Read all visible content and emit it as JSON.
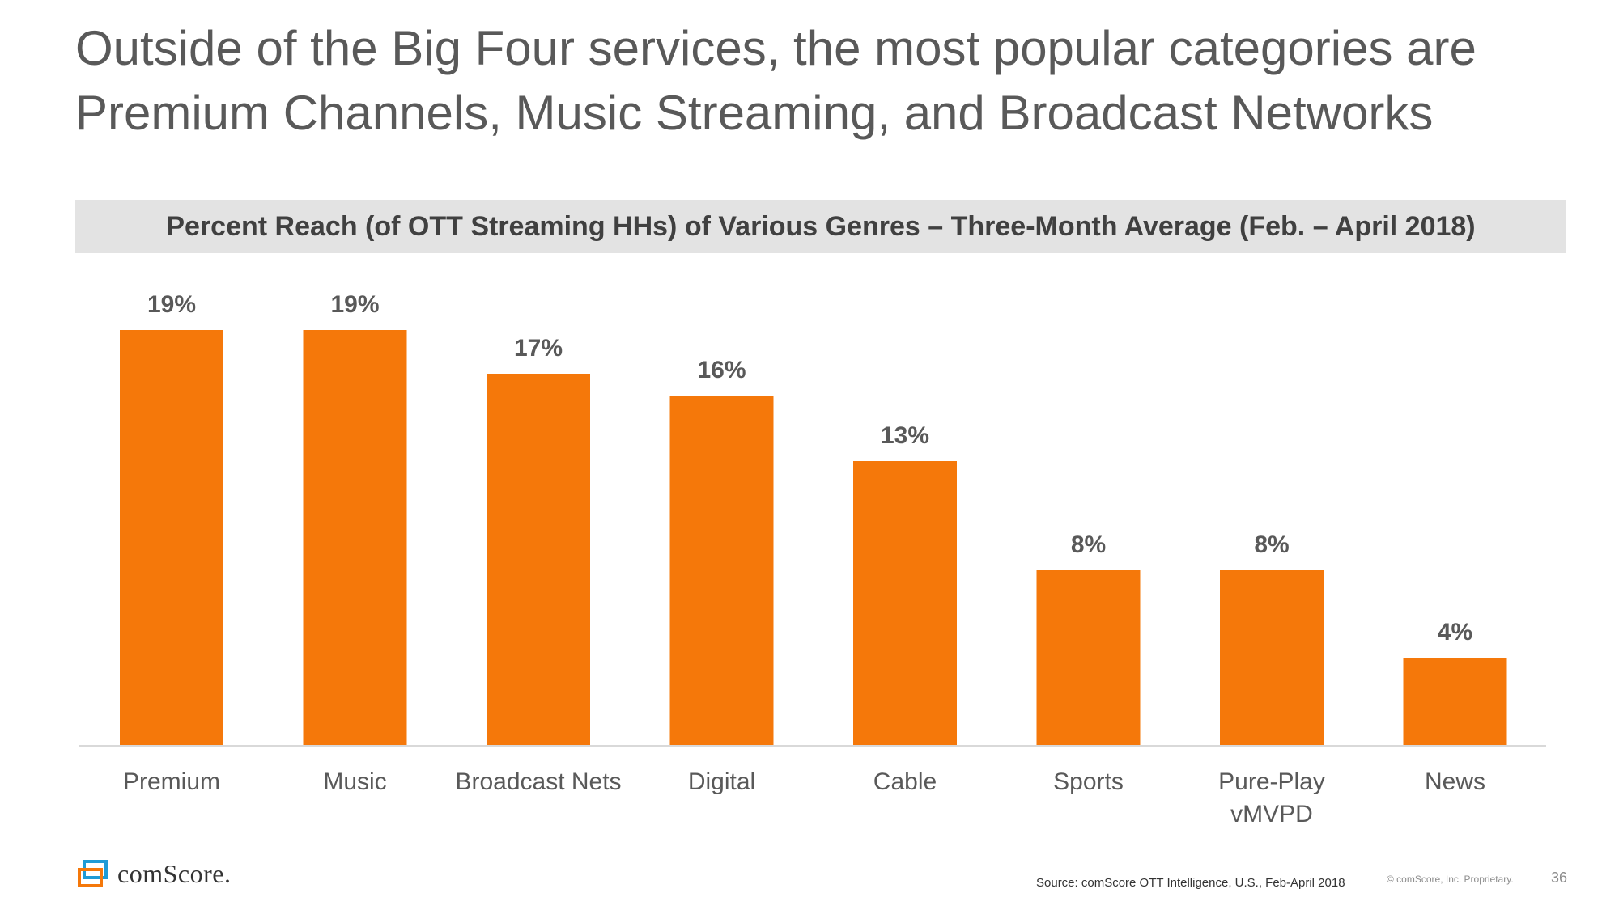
{
  "title": {
    "line1": "Outside of the Big Four services, the most popular categories are",
    "line2": "Premium Channels, Music Streaming, and Broadcast Networks"
  },
  "chart_data": {
    "type": "bar",
    "title": "Percent Reach (of OTT Streaming HHs) of Various Genres – Three-Month Average (Feb. – April 2018)",
    "categories": [
      [
        "Premium"
      ],
      [
        "Music"
      ],
      [
        "Broadcast Nets"
      ],
      [
        "Digital"
      ],
      [
        "Cable"
      ],
      [
        "Sports"
      ],
      [
        "Pure-Play",
        "vMVPD"
      ],
      [
        "News"
      ]
    ],
    "values": [
      19,
      19,
      17,
      16,
      13,
      8,
      8,
      4
    ],
    "value_labels": [
      "19%",
      "19%",
      "17%",
      "16%",
      "13%",
      "8%",
      "8%",
      "4%"
    ],
    "ylim": [
      0,
      20
    ],
    "bar_color": "#f5780a",
    "axis_color": "#d9d9d9",
    "xlabel": "",
    "ylabel": ""
  },
  "footer": {
    "logo_text": "comScore.",
    "source": "Source: comScore OTT Intelligence, U.S., Feb-April 2018",
    "copyright": "© comScore, Inc. Proprietary.",
    "page_number": "36"
  },
  "colors": {
    "title": "#595959",
    "band": "#e3e3e3",
    "logo_orange": "#f5780a",
    "logo_blue": "#1f9bd6"
  }
}
